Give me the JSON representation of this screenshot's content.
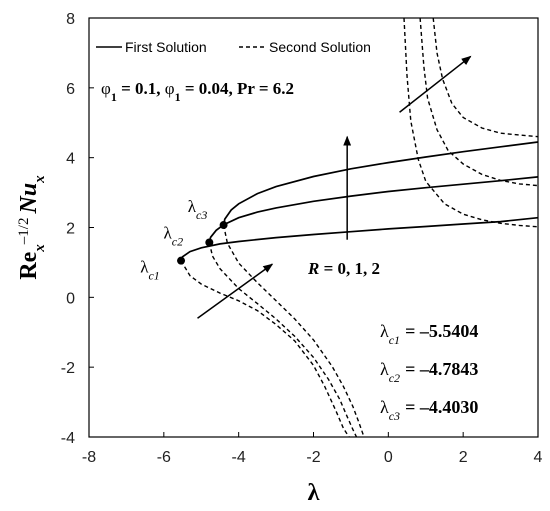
{
  "chart_data": {
    "type": "line",
    "xlabel": "λ",
    "ylabel": "Re_x^(-1/2) Nu_x",
    "xlim": [
      -8,
      4
    ],
    "ylim": [
      -4,
      8
    ],
    "x_ticks": [
      "-8",
      "-6",
      "-4",
      "-2",
      "0",
      "2",
      "4"
    ],
    "y_ticks": [
      "-4",
      "-2",
      "0",
      "2",
      "4",
      "6",
      "8"
    ],
    "grid": false,
    "legend": {
      "position": "top",
      "entries": [
        {
          "label": "First Solution",
          "style": "solid"
        },
        {
          "label": "Second Solution",
          "style": "dashed"
        }
      ]
    },
    "parameters": {
      "parts": [
        {
          "text": "φ",
          "style": "normal"
        },
        {
          "text": "1",
          "style": "sub"
        },
        {
          "text": " = 0.1, ",
          "style": "bold"
        },
        {
          "text": "φ",
          "style": "normal"
        },
        {
          "text": "1",
          "style": "sub"
        },
        {
          "text": " = 0.04, Pr = 6.2",
          "style": "bold"
        }
      ]
    },
    "r_label": {
      "prefix": "R",
      "rest": " = 0, 1, 2"
    },
    "critical_points": [
      {
        "name": "λc1",
        "sub": "c1",
        "x": -5.5404,
        "y": 1.05,
        "value_label": "= –5.5404"
      },
      {
        "name": "λc2",
        "sub": "c2",
        "x": -4.7843,
        "y": 1.57,
        "value_label": "= –4.7843"
      },
      {
        "name": "λc3",
        "sub": "c3",
        "x": -4.403,
        "y": 2.07,
        "value_label": "= –4.4030"
      }
    ],
    "series": [
      {
        "style": "solid",
        "x": [
          -5.5404,
          -5.5,
          -5.3,
          -5.0,
          -4.5,
          -4.0,
          -3.0,
          -2.0,
          -1.0,
          0.0,
          1.0,
          2.0,
          3.0,
          4.0
        ],
        "y": [
          1.05,
          1.16,
          1.31,
          1.42,
          1.53,
          1.6,
          1.71,
          1.8,
          1.88,
          1.96,
          2.03,
          2.1,
          2.17,
          2.28
        ]
      },
      {
        "style": "solid",
        "x": [
          -4.7843,
          -4.75,
          -4.6,
          -4.4,
          -4.0,
          -3.5,
          -3.0,
          -2.0,
          -1.0,
          0.0,
          1.0,
          2.0,
          3.0,
          4.0
        ],
        "y": [
          1.57,
          1.72,
          1.92,
          2.08,
          2.28,
          2.44,
          2.56,
          2.75,
          2.9,
          3.03,
          3.14,
          3.24,
          3.34,
          3.45
        ]
      },
      {
        "style": "solid",
        "x": [
          -4.403,
          -4.37,
          -4.2,
          -4.0,
          -3.5,
          -3.0,
          -2.0,
          -1.0,
          0.0,
          1.0,
          2.0,
          3.0,
          4.0
        ],
        "y": [
          2.07,
          2.24,
          2.5,
          2.68,
          2.97,
          3.17,
          3.46,
          3.68,
          3.86,
          4.02,
          4.17,
          4.31,
          4.45
        ]
      },
      {
        "style": "dashed",
        "x": [
          -5.5404,
          -5.3,
          -5.0,
          -4.5,
          -4.0,
          -3.5,
          -3.0,
          -2.5,
          -2.0,
          -1.7,
          -1.4,
          -1.2,
          -1.05
        ],
        "y": [
          1.05,
          0.62,
          0.38,
          0.12,
          -0.1,
          -0.38,
          -0.78,
          -1.25,
          -1.95,
          -2.55,
          -3.25,
          -3.75,
          -4.0
        ]
      },
      {
        "style": "dashed",
        "x": [
          -4.7843,
          -4.7,
          -4.5,
          -4.0,
          -3.5,
          -3.0,
          -2.5,
          -2.0,
          -1.6,
          -1.3,
          -1.1,
          -0.95,
          -0.85
        ],
        "y": [
          1.57,
          1.18,
          0.82,
          0.25,
          -0.18,
          -0.62,
          -1.12,
          -1.72,
          -2.35,
          -2.92,
          -3.42,
          -3.78,
          -4.0
        ]
      },
      {
        "style": "dashed",
        "x": [
          -4.403,
          -4.3,
          -4.0,
          -3.5,
          -3.0,
          -2.5,
          -2.0,
          -1.5,
          -1.2,
          -0.95,
          -0.78,
          -0.65
        ],
        "y": [
          2.07,
          1.55,
          0.98,
          0.42,
          -0.1,
          -0.62,
          -1.22,
          -1.98,
          -2.55,
          -3.12,
          -3.6,
          -4.0
        ]
      },
      {
        "style": "dashed",
        "x": [
          0.42,
          0.5,
          0.6,
          0.8,
          1.0,
          1.5,
          2.0,
          2.5,
          3.0,
          3.5,
          4.0
        ],
        "y": [
          8.0,
          6.35,
          5.05,
          3.95,
          3.32,
          2.68,
          2.38,
          2.22,
          2.12,
          2.06,
          2.02
        ]
      },
      {
        "style": "dashed",
        "x": [
          0.85,
          0.95,
          1.05,
          1.3,
          1.6,
          2.0,
          2.5,
          3.0,
          3.5,
          4.0
        ],
        "y": [
          8.0,
          6.6,
          5.7,
          4.8,
          4.2,
          3.82,
          3.52,
          3.35,
          3.25,
          3.2
        ]
      },
      {
        "style": "dashed",
        "x": [
          1.2,
          1.3,
          1.45,
          1.7,
          2.0,
          2.5,
          3.0,
          3.5,
          4.0
        ],
        "y": [
          8.0,
          7.0,
          6.25,
          5.55,
          5.15,
          4.85,
          4.7,
          4.65,
          4.6
        ]
      }
    ],
    "arrows": [
      {
        "from": [
          -1.1,
          1.65
        ],
        "to": [
          -1.1,
          4.6
        ]
      },
      {
        "from": [
          -5.1,
          -0.6
        ],
        "to": [
          -3.1,
          0.95
        ]
      },
      {
        "from": [
          0.3,
          5.3
        ],
        "to": [
          2.2,
          6.9
        ]
      }
    ]
  }
}
